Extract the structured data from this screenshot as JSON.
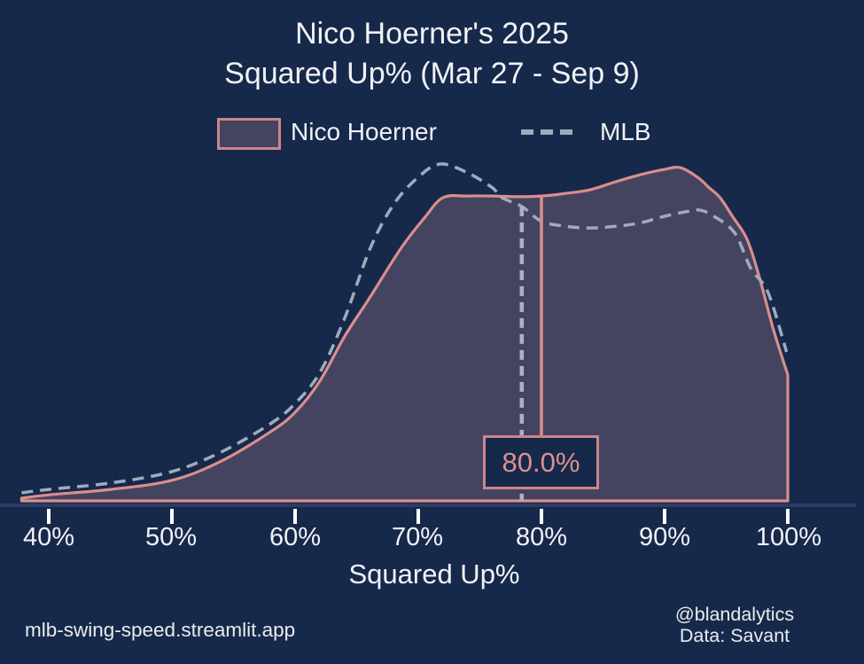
{
  "title": {
    "line1": "Nico Hoerner's 2025",
    "line2": "Squared Up% (Mar 27 - Sep 9)"
  },
  "legend": {
    "player_label": "Nico Hoerner",
    "league_label": "MLB"
  },
  "annotation": {
    "value_label": "80.0%"
  },
  "x_axis": {
    "title": "Squared Up%",
    "ticks": [
      "40%",
      "50%",
      "60%",
      "70%",
      "80%",
      "90%",
      "100%"
    ]
  },
  "footer": {
    "left": "mlb-swing-speed.streamlit.app",
    "right_line1": "@blandalytics",
    "right_line2": "Data: Savant"
  },
  "colors": {
    "background": "#16294b",
    "area_fill": "#444360",
    "player_line": "#d98e8d",
    "league_line": "#9fabbc",
    "marker_dashed": "#aab3c2",
    "annotation_border": "#c9878a",
    "annotation_text": "#d99190",
    "axis_spine": "#2c3b63",
    "tick_mark": "#ffffff",
    "text": "#f2f2f4"
  },
  "chart_data": {
    "type": "area",
    "subtype": "kde-density",
    "title": "Nico Hoerner's 2025 Squared Up% (Mar 27 - Sep 9)",
    "xlabel": "Squared Up%",
    "ylabel": "",
    "x_unit": "percent",
    "xlim": [
      36,
      105
    ],
    "x_ticks": [
      40,
      50,
      60,
      70,
      80,
      90,
      100
    ],
    "grid": false,
    "legend_position": "top-center",
    "series": [
      {
        "name": "Nico Hoerner",
        "style": "solid-filled",
        "x_pct": [
          37.8,
          40,
          45,
          50,
          54,
          58,
          60,
          62,
          64,
          66,
          68.6,
          70.5,
          72,
          74,
          76,
          78,
          80,
          82,
          84,
          86,
          88,
          90,
          91.3,
          92.7,
          93.6,
          94.5,
          95.5,
          96.7,
          97.7,
          98.8,
          100
        ],
        "density": [
          0.008,
          0.018,
          0.034,
          0.061,
          0.118,
          0.205,
          0.263,
          0.355,
          0.487,
          0.6,
          0.75,
          0.84,
          0.9,
          0.905,
          0.905,
          0.903,
          0.905,
          0.913,
          0.924,
          0.947,
          0.968,
          0.984,
          0.989,
          0.96,
          0.93,
          0.9,
          0.845,
          0.776,
          0.663,
          0.513,
          0.374
        ],
        "clipped_at_pct": 100
      },
      {
        "name": "MLB",
        "style": "dashed",
        "x_pct": [
          37.8,
          40,
          45,
          50,
          54,
          58,
          60,
          62,
          64,
          66.1,
          68,
          70,
          71.8,
          74,
          76,
          76.8,
          78.4,
          80,
          82,
          84,
          86,
          88,
          90,
          92,
          92.9,
          94,
          95.7,
          97,
          98.4,
          99.9
        ],
        "density": [
          0.024,
          0.034,
          0.053,
          0.087,
          0.145,
          0.229,
          0.289,
          0.38,
          0.54,
          0.75,
          0.88,
          0.961,
          1.0,
          0.974,
          0.93,
          0.9,
          0.874,
          0.83,
          0.815,
          0.81,
          0.815,
          0.825,
          0.845,
          0.86,
          0.863,
          0.845,
          0.795,
          0.69,
          0.618,
          0.442
        ]
      }
    ],
    "markers": [
      {
        "series": "MLB",
        "x_pct": 78.4,
        "label": "",
        "line_style": "dashed"
      },
      {
        "series": "Nico Hoerner",
        "x_pct": 80.0,
        "label": "80.0%",
        "line_style": "solid"
      }
    ]
  }
}
